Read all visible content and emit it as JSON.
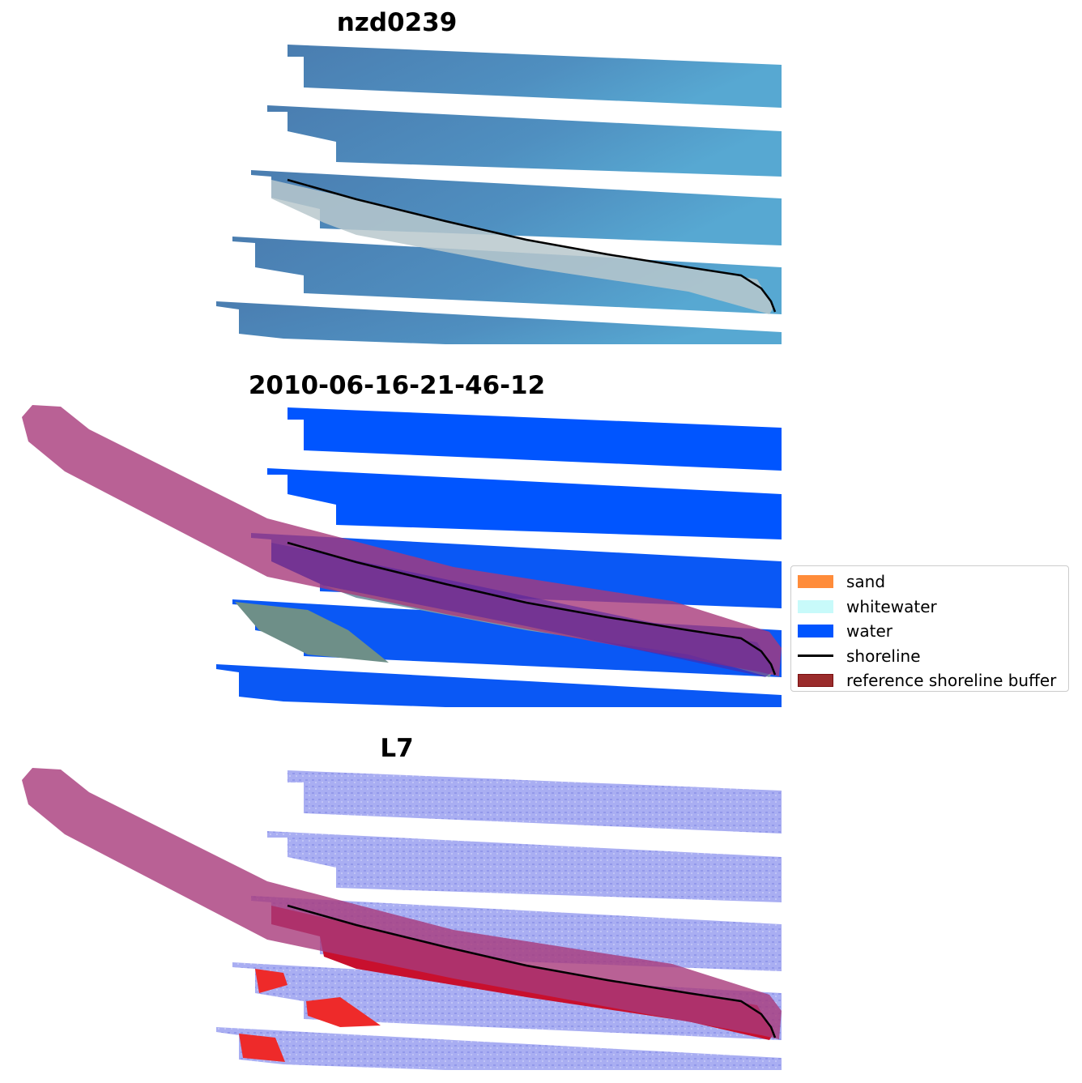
{
  "panels": [
    {
      "title": "nzd0239"
    },
    {
      "title": "2010-06-16-21-46-12"
    },
    {
      "title": "L7"
    }
  ],
  "legend": {
    "items": [
      {
        "label": "sand",
        "color": "#ff8c3a"
      },
      {
        "label": "whitewater",
        "color": "#c8fafa"
      },
      {
        "label": "water",
        "color": "#0055ff"
      },
      {
        "label": "shoreline",
        "color": "#000000"
      },
      {
        "label": "reference shoreline buffer",
        "color": "#9b2c2c"
      }
    ]
  }
}
